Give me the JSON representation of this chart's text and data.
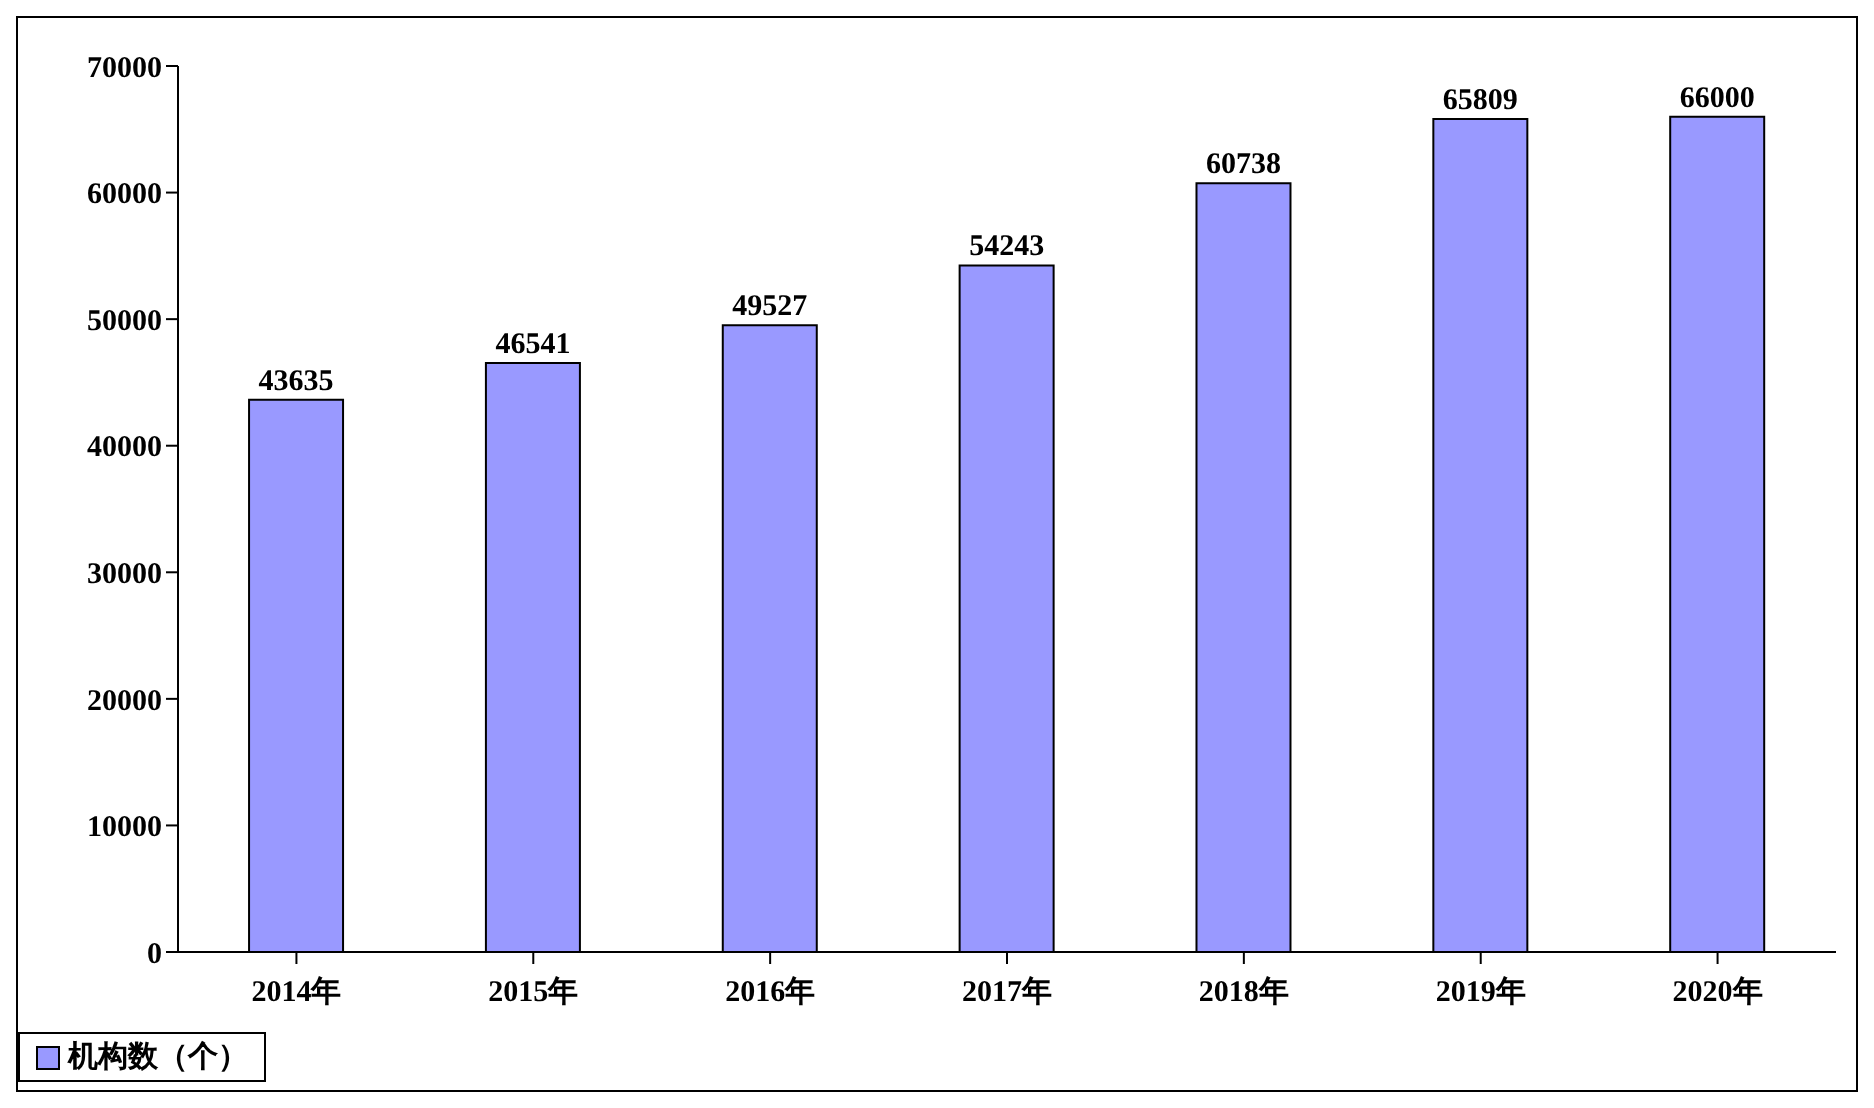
{
  "chart_data": {
    "type": "bar",
    "categories": [
      "2014年",
      "2015年",
      "2016年",
      "2017年",
      "2018年",
      "2019年",
      "2020年"
    ],
    "series": [
      {
        "name": "机构数（个）",
        "color": "#9999ff",
        "values": [
          43635,
          46541,
          49527,
          54243,
          60738,
          65809,
          66000
        ]
      }
    ],
    "ylim": [
      0,
      70000
    ],
    "yticks": [
      0,
      10000,
      20000,
      30000,
      40000,
      50000,
      60000,
      70000
    ],
    "grid": false,
    "data_labels": true,
    "legend": "bottom"
  }
}
